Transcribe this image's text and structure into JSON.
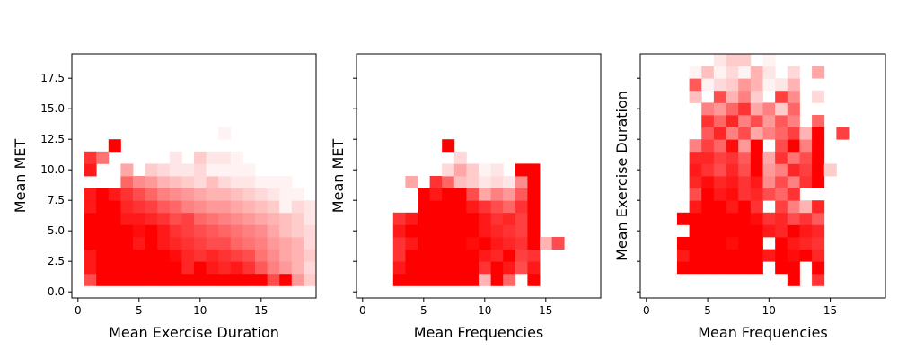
{
  "chart_data": [
    {
      "type": "heatmap",
      "xlabel": "Mean Exercise Duration",
      "ylabel": "Mean MET",
      "xlim": [
        -0.5,
        19.5
      ],
      "ylim": [
        -0.5,
        19.5
      ],
      "xticks": [
        0,
        5,
        10,
        15
      ],
      "yticks": [
        0.0,
        2.5,
        5.0,
        7.5,
        10.0,
        12.5,
        15.0,
        17.5
      ],
      "ytick_labels": [
        "0.0",
        "2.5",
        "5.0",
        "7.5",
        "10.0",
        "12.5",
        "15.0",
        "17.5"
      ],
      "show_yticklabels": true,
      "bin_width": 1,
      "color": "#ff0000",
      "x_bins": [
        1,
        2,
        3,
        4,
        5,
        6,
        7,
        8,
        9,
        10,
        11,
        12,
        13,
        14,
        15,
        16,
        17,
        18,
        19
      ],
      "y_bins": [
        1,
        2,
        3,
        4,
        5,
        6,
        7,
        8,
        9,
        10,
        11,
        12,
        13
      ],
      "matrix": [
        [
          0.7,
          1.0,
          1.0,
          1.0,
          1.0,
          1.0,
          1.0,
          1.0,
          1.0,
          1.0,
          1.0,
          1.0,
          1.0,
          1.0,
          1.0,
          0.7,
          1.0,
          0.4,
          0.2
        ],
        [
          0.9,
          1.0,
          1.0,
          1.0,
          1.0,
          1.0,
          1.0,
          1.0,
          0.85,
          1.0,
          0.9,
          0.85,
          0.9,
          0.8,
          0.65,
          0.5,
          0.4,
          0.3,
          0.15
        ],
        [
          0.9,
          1.0,
          1.0,
          1.0,
          1.0,
          1.0,
          1.0,
          0.95,
          0.85,
          0.8,
          0.85,
          0.8,
          0.75,
          0.7,
          0.55,
          0.45,
          0.35,
          0.3,
          0.2
        ],
        [
          1.0,
          1.0,
          1.0,
          1.0,
          0.9,
          1.0,
          0.9,
          0.85,
          0.8,
          0.75,
          0.7,
          0.7,
          0.6,
          0.55,
          0.5,
          0.4,
          0.35,
          0.3,
          0.15
        ],
        [
          1.0,
          1.0,
          1.0,
          1.0,
          0.95,
          1.0,
          0.9,
          0.8,
          0.75,
          0.7,
          0.65,
          0.6,
          0.55,
          0.5,
          0.45,
          0.35,
          0.25,
          0.2,
          0.15
        ],
        [
          1.0,
          1.0,
          1.0,
          0.9,
          0.9,
          0.85,
          0.8,
          0.7,
          0.75,
          0.6,
          0.55,
          0.5,
          0.45,
          0.4,
          0.35,
          0.3,
          0.25,
          0.2,
          0.1
        ],
        [
          0.9,
          1.0,
          1.0,
          0.85,
          0.8,
          0.75,
          0.65,
          0.6,
          0.5,
          0.45,
          0.4,
          0.4,
          0.35,
          0.3,
          0.25,
          0.2,
          0.05,
          0.15,
          0.1
        ],
        [
          0.9,
          1.0,
          0.9,
          0.8,
          0.7,
          0.6,
          0.5,
          0.45,
          0.4,
          0.35,
          0.3,
          0.3,
          0.25,
          0.2,
          0.15,
          0.1,
          0.05,
          0.05,
          0.0
        ],
        [
          0.0,
          0.0,
          0.0,
          0.6,
          0.45,
          0.4,
          0.3,
          0.25,
          0.2,
          0.15,
          0.25,
          0.15,
          0.1,
          0.1,
          0.05,
          0.05,
          0.05,
          0.0,
          0.0
        ],
        [
          0.9,
          0.0,
          0.0,
          0.35,
          0.0,
          0.2,
          0.15,
          0.1,
          0.1,
          0.15,
          0.05,
          0.05,
          0.05,
          0.05,
          0.0,
          0.0,
          0.0,
          0.0,
          0.0
        ],
        [
          0.8,
          0.55,
          0.0,
          0.0,
          0.0,
          0.0,
          0.0,
          0.1,
          0.0,
          0.2,
          0.1,
          0.1,
          0.05,
          0.0,
          0.0,
          0.0,
          0.0,
          0.0,
          0.0
        ],
        [
          0.0,
          0.0,
          1.0,
          0.0,
          0.0,
          0.0,
          0.0,
          0.0,
          0.0,
          0.0,
          0.0,
          0.0,
          0.0,
          0.0,
          0.0,
          0.0,
          0.0,
          0.0,
          0.0
        ],
        [
          0.0,
          0.0,
          0.0,
          0.0,
          0.0,
          0.0,
          0.0,
          0.0,
          0.0,
          0.0,
          0.0,
          0.05,
          0.0,
          0.0,
          0.0,
          0.0,
          0.0,
          0.0,
          0.0
        ]
      ]
    },
    {
      "type": "heatmap",
      "xlabel": "Mean Frequencies",
      "ylabel": "Mean MET",
      "xlim": [
        -0.5,
        19.5
      ],
      "ylim": [
        -0.5,
        19.5
      ],
      "xticks": [
        0,
        5,
        10,
        15
      ],
      "yticks": [
        0.0,
        2.5,
        5.0,
        7.5,
        10.0,
        12.5,
        15.0,
        17.5
      ],
      "show_yticklabels": false,
      "bin_width": 1,
      "color": "#ff0000",
      "x_bins": [
        3,
        4,
        5,
        6,
        7,
        8,
        9,
        10,
        11,
        12,
        13,
        14,
        15,
        16
      ],
      "y_bins": [
        1,
        2,
        3,
        4,
        5,
        6,
        7,
        8,
        9,
        10,
        11,
        12
      ],
      "matrix": [
        [
          1.0,
          1.0,
          1.0,
          1.0,
          1.0,
          1.0,
          1.0,
          0.3,
          1.0,
          0.6,
          0.0,
          1.0,
          0.0,
          0.0
        ],
        [
          0.9,
          1.0,
          1.0,
          1.0,
          1.0,
          1.0,
          1.0,
          0.8,
          1.0,
          0.9,
          0.7,
          0.9,
          0.0,
          0.0
        ],
        [
          0.8,
          1.0,
          1.0,
          1.0,
          1.0,
          1.0,
          1.0,
          0.9,
          0.85,
          1.0,
          0.75,
          0.8,
          0.0,
          0.0
        ],
        [
          0.8,
          0.9,
          1.0,
          1.0,
          1.0,
          1.0,
          0.95,
          1.0,
          0.9,
          0.85,
          0.8,
          1.0,
          0.3,
          0.7
        ],
        [
          0.9,
          1.0,
          1.0,
          1.0,
          1.0,
          1.0,
          1.0,
          0.9,
          0.85,
          0.8,
          0.75,
          1.0,
          0.0,
          0.0
        ],
        [
          0.8,
          0.9,
          1.0,
          1.0,
          1.0,
          1.0,
          1.0,
          0.9,
          0.8,
          0.85,
          0.75,
          1.0,
          0.0,
          0.0
        ],
        [
          0.0,
          0.0,
          1.0,
          1.0,
          1.0,
          1.0,
          0.9,
          0.8,
          0.7,
          0.6,
          0.8,
          1.0,
          0.0,
          0.0
        ],
        [
          0.0,
          0.0,
          1.0,
          0.9,
          1.0,
          1.0,
          0.7,
          0.35,
          0.5,
          0.4,
          0.65,
          1.0,
          0.0,
          0.0
        ],
        [
          0.0,
          0.35,
          0.0,
          0.8,
          0.6,
          0.25,
          0.2,
          0.1,
          0.15,
          0.1,
          0.45,
          1.0,
          0.0,
          0.0
        ],
        [
          0.0,
          0.0,
          0.0,
          0.0,
          0.15,
          0.35,
          0.2,
          0.05,
          0.1,
          0.0,
          1.0,
          1.0,
          0.0,
          0.0
        ],
        [
          0.0,
          0.0,
          0.0,
          0.0,
          0.0,
          0.15,
          0.0,
          0.0,
          0.0,
          0.0,
          0.0,
          0.0,
          0.0,
          0.0
        ],
        [
          0.0,
          0.0,
          0.0,
          0.0,
          1.0,
          0.0,
          0.0,
          0.0,
          0.0,
          0.0,
          0.0,
          0.0,
          0.0,
          0.0
        ]
      ]
    },
    {
      "type": "heatmap",
      "xlabel": "Mean Frequencies",
      "ylabel": "Mean Exercise Duration",
      "xlim": [
        -0.5,
        19.5
      ],
      "ylim": [
        -0.5,
        19.5
      ],
      "xticks": [
        0,
        5,
        10,
        15
      ],
      "yticks": [
        0.0,
        2.5,
        5.0,
        7.5,
        10.0,
        12.5,
        15.0,
        17.5
      ],
      "show_yticklabels": false,
      "bin_width": 1,
      "color": "#ff0000",
      "x_bins": [
        3,
        4,
        5,
        6,
        7,
        8,
        9,
        10,
        11,
        12,
        13,
        14,
        15,
        16
      ],
      "y_bins": [
        1,
        2,
        3,
        4,
        5,
        6,
        7,
        8,
        9,
        10,
        11,
        12,
        13,
        14,
        15,
        16,
        17,
        18,
        19
      ],
      "matrix": [
        [
          0.0,
          0.0,
          0.0,
          0.0,
          0.0,
          0.0,
          0.0,
          0.0,
          0.0,
          1.0,
          0.0,
          0.8,
          0.0,
          0.0
        ],
        [
          1.0,
          1.0,
          1.0,
          1.0,
          1.0,
          1.0,
          1.0,
          0.0,
          1.0,
          1.0,
          0.0,
          1.0,
          0.0,
          0.0
        ],
        [
          0.9,
          1.0,
          1.0,
          1.0,
          1.0,
          1.0,
          1.0,
          0.9,
          1.0,
          0.95,
          1.0,
          0.85,
          0.0,
          0.0
        ],
        [
          1.0,
          1.0,
          1.0,
          1.0,
          0.95,
          1.0,
          1.0,
          0.0,
          1.0,
          0.9,
          0.85,
          0.8,
          0.0,
          0.0
        ],
        [
          0.0,
          1.0,
          1.0,
          1.0,
          1.0,
          1.0,
          1.0,
          0.9,
          0.85,
          1.0,
          0.9,
          0.85,
          0.0,
          0.0
        ],
        [
          1.0,
          1.0,
          1.0,
          1.0,
          1.0,
          1.0,
          0.95,
          0.8,
          0.85,
          0.7,
          0.8,
          0.65,
          0.0,
          0.0
        ],
        [
          0.0,
          0.9,
          1.0,
          1.0,
          0.9,
          1.0,
          0.8,
          0.0,
          0.75,
          0.5,
          0.3,
          0.85,
          0.0,
          0.0
        ],
        [
          0.0,
          0.7,
          1.0,
          0.9,
          0.95,
          0.8,
          0.85,
          0.7,
          0.6,
          0.8,
          0.0,
          0.0,
          0.0,
          0.0
        ],
        [
          0.0,
          0.85,
          0.95,
          0.85,
          0.9,
          0.8,
          0.9,
          0.45,
          0.7,
          0.5,
          0.8,
          1.0,
          0.0,
          0.0
        ],
        [
          0.0,
          0.9,
          0.8,
          0.7,
          0.85,
          0.7,
          1.0,
          0.4,
          0.5,
          0.85,
          0.75,
          1.0,
          0.2,
          0.0
        ],
        [
          0.0,
          0.85,
          0.85,
          0.75,
          0.8,
          0.65,
          1.0,
          0.35,
          0.8,
          0.55,
          0.7,
          1.0,
          0.0,
          0.0
        ],
        [
          0.0,
          0.5,
          0.75,
          0.6,
          0.95,
          0.4,
          1.0,
          0.0,
          0.7,
          1.0,
          0.5,
          1.0,
          0.0,
          0.0
        ],
        [
          0.0,
          0.0,
          0.65,
          0.85,
          0.5,
          0.7,
          0.35,
          0.5,
          0.6,
          0.75,
          0.3,
          1.0,
          0.0,
          0.75
        ],
        [
          0.0,
          0.0,
          0.8,
          0.6,
          0.85,
          0.5,
          0.7,
          0.4,
          0.65,
          0.5,
          0.0,
          0.6,
          0.0,
          0.0
        ],
        [
          0.0,
          0.0,
          0.5,
          0.4,
          0.6,
          0.8,
          0.35,
          0.5,
          0.2,
          0.6,
          0.0,
          0.0,
          0.0,
          0.0
        ],
        [
          0.0,
          0.25,
          0.0,
          0.7,
          0.3,
          0.5,
          0.2,
          0.0,
          0.75,
          0.45,
          0.0,
          0.15,
          0.0,
          0.0
        ],
        [
          0.0,
          0.65,
          0.05,
          0.15,
          0.2,
          0.4,
          0.3,
          0.05,
          0.1,
          0.3,
          0.0,
          0.0,
          0.0,
          0.0
        ],
        [
          0.0,
          0.05,
          0.25,
          0.05,
          0.15,
          0.05,
          0.3,
          0.1,
          0.0,
          0.15,
          0.0,
          0.35,
          0.0,
          0.0
        ],
        [
          0.0,
          0.0,
          0.0,
          0.1,
          0.2,
          0.2,
          0.0,
          0.05,
          0.0,
          0.0,
          0.0,
          0.0,
          0.0,
          0.0
        ]
      ]
    }
  ]
}
